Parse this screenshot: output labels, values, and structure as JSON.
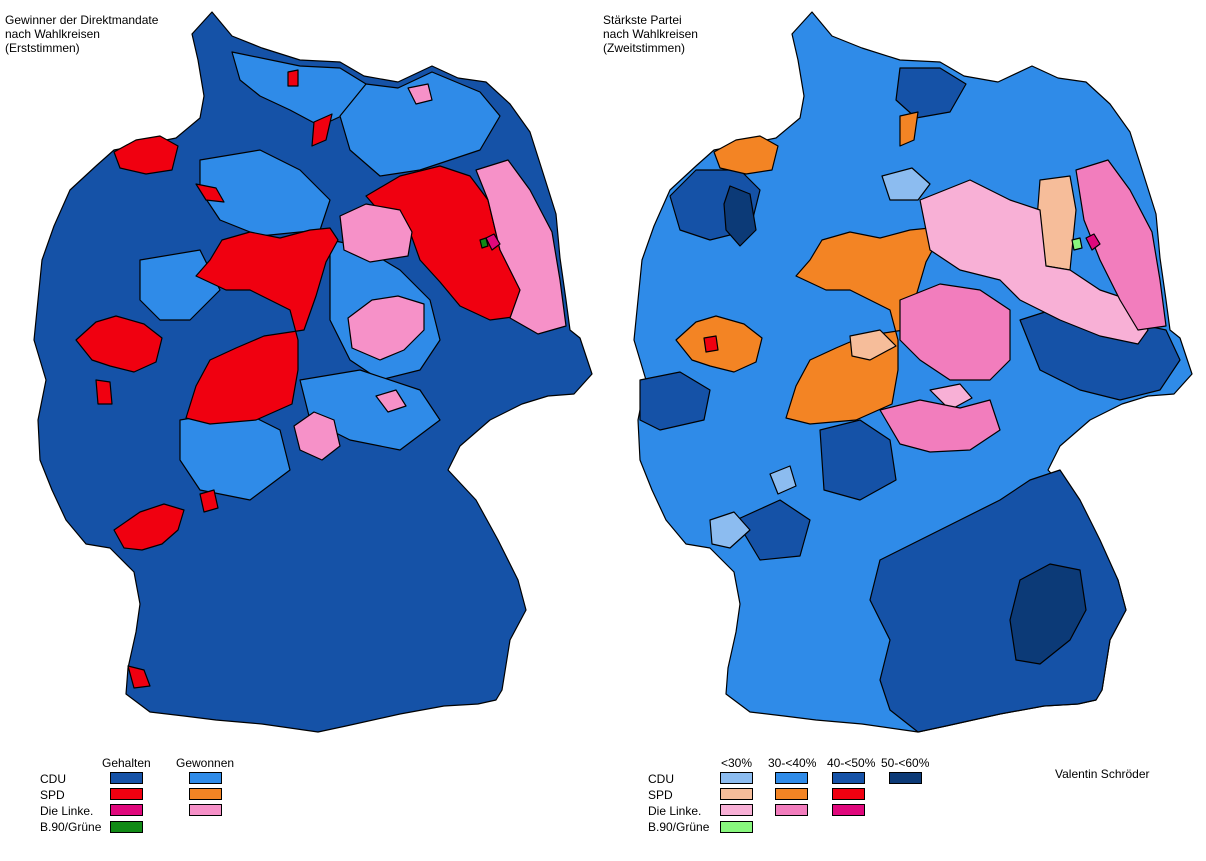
{
  "left": {
    "title": "Gewinner der Direktmandate\nnach Wahlkreisen\n(Erststimmen)",
    "legend": {
      "columns": [
        "Gehalten",
        "Gewonnen"
      ],
      "rows": [
        {
          "label": "CDU",
          "held": "#1552a7",
          "won": "#2f8be8"
        },
        {
          "label": "SPD",
          "held": "#f00010",
          "won": "#f38424"
        },
        {
          "label": "Die Linke.",
          "held": "#e0087c",
          "won": "#f691c8"
        },
        {
          "label": "B.90/Grüne",
          "held": "#118a16",
          "won": null
        }
      ]
    }
  },
  "right": {
    "title": "Stärkste Partei\nnach Wahlkreisen\n(Zweitstimmen)",
    "legend": {
      "columns": [
        "<30%",
        "30-<40%",
        "40-<50%",
        "50-<60%"
      ],
      "rows": [
        {
          "label": "CDU",
          "colors": [
            "#8cbcf0",
            "#2f8be8",
            "#1552a7",
            "#0c3a77"
          ]
        },
        {
          "label": "SPD",
          "colors": [
            "#f6bd9a",
            "#f38424",
            "#f00010",
            null
          ]
        },
        {
          "label": "Die Linke.",
          "colors": [
            "#f8b0d6",
            "#f27dbd",
            "#e0087c",
            null
          ]
        },
        {
          "label": "B.90/Grüne",
          "colors": [
            "#88f77e",
            null,
            null,
            null
          ]
        }
      ]
    }
  },
  "author": "Valentin Schröder",
  "colors": {
    "cdu_held": "#1552a7",
    "cdu_won": "#2f8be8",
    "cdu_lt30": "#8cbcf0",
    "cdu_50": "#0c3a77",
    "spd_held": "#f00010",
    "spd_won": "#f38424",
    "spd_lt30": "#f6bd9a",
    "linke_held": "#e0087c",
    "linke_won": "#f691c8",
    "linke_lt30": "#f8b0d6",
    "gruene": "#118a16",
    "gruene_lt30": "#88f77e",
    "border": "#000000"
  }
}
